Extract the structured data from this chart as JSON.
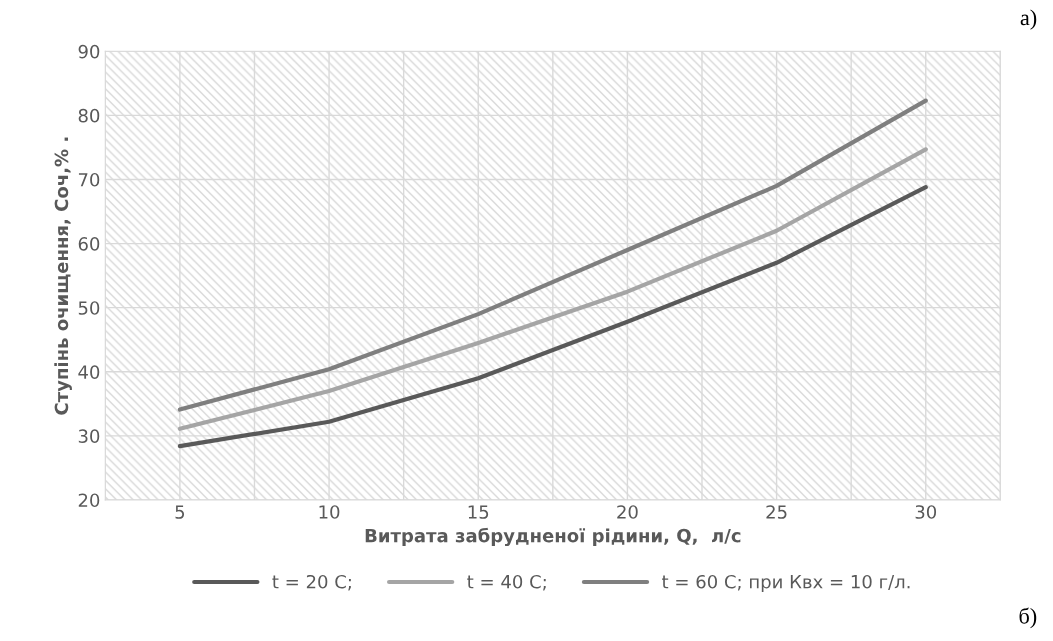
{
  "chart_data": {
    "type": "line",
    "xlabel": "Витрата забрудненої рідини, Q,  л/с",
    "ylabel": "Ступінь очищення, Соч,% .",
    "x": [
      5,
      10,
      15,
      20,
      25,
      30
    ],
    "series": [
      {
        "name": "t = 20 С;",
        "color": "#595959",
        "values": [
          28.4,
          32.2,
          39.0,
          47.8,
          57.0,
          68.8
        ]
      },
      {
        "name": "t = 40 С;",
        "color": "#a5a5a5",
        "values": [
          31.1,
          37.0,
          44.5,
          52.5,
          62.0,
          74.7
        ]
      },
      {
        "name": "t = 60 С; при Квх = 10 г/л.",
        "color": "#7f7f7f",
        "values": [
          34.1,
          40.4,
          49.0,
          59.0,
          69.0,
          82.3
        ]
      }
    ],
    "xlim": [
      2.5,
      32.5
    ],
    "xticks": [
      {
        "value": 2.5,
        "label": null
      },
      5,
      {
        "value": 7.5,
        "label": null
      },
      10,
      {
        "value": 12.5,
        "label": null
      },
      15,
      {
        "value": 17.5,
        "label": null
      },
      20,
      {
        "value": 22.5,
        "label": null
      },
      25,
      {
        "value": 27.5,
        "label": null
      },
      30,
      {
        "value": 32.5,
        "label": null
      }
    ],
    "ylim": [
      20,
      90
    ],
    "yticks": [
      20,
      30,
      40,
      50,
      60,
      70,
      80,
      90
    ],
    "grid": true,
    "legend": "bottom",
    "marker": "none",
    "line_style": "solid",
    "annotations": [
      "а)",
      "б)"
    ]
  }
}
